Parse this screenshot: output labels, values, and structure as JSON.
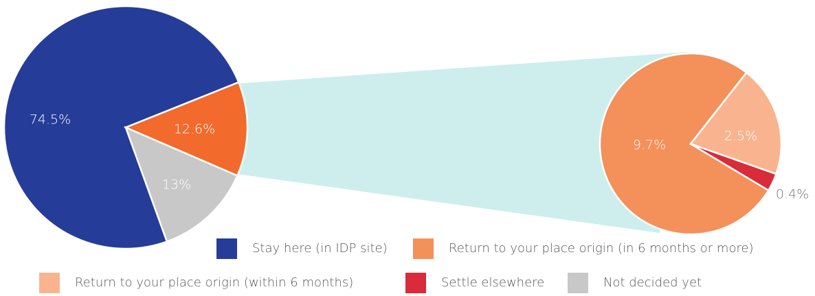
{
  "chart_data": {
    "type": "pie",
    "legend": [
      {
        "name": "Stay here (in IDP site)",
        "color": "#253d98"
      },
      {
        "name": "Return to your place origin (in 6 months or more)",
        "color": "#f4905a"
      },
      {
        "name": "Return to your place origin (within 6 months)",
        "color": "#f9b48f"
      },
      {
        "name": "Settle elsewhere",
        "color": "#d92b3a"
      },
      {
        "name": "Not decided yet",
        "color": "#c8c8c8"
      }
    ],
    "pies": [
      {
        "values": [
          74.5,
          12.6,
          13
        ],
        "value_labels": [
          "74.5%",
          "12.6%",
          "13%"
        ],
        "colors": [
          "#253d98",
          "#f26a2c",
          "#c8c8c8"
        ]
      },
      {
        "values": [
          9.7,
          2.5,
          0.4
        ],
        "value_labels": [
          "9.7%",
          "2.5%",
          "0.4%"
        ],
        "colors": [
          "#f4905a",
          "#f9b48f",
          "#d92b3a"
        ]
      }
    ]
  }
}
